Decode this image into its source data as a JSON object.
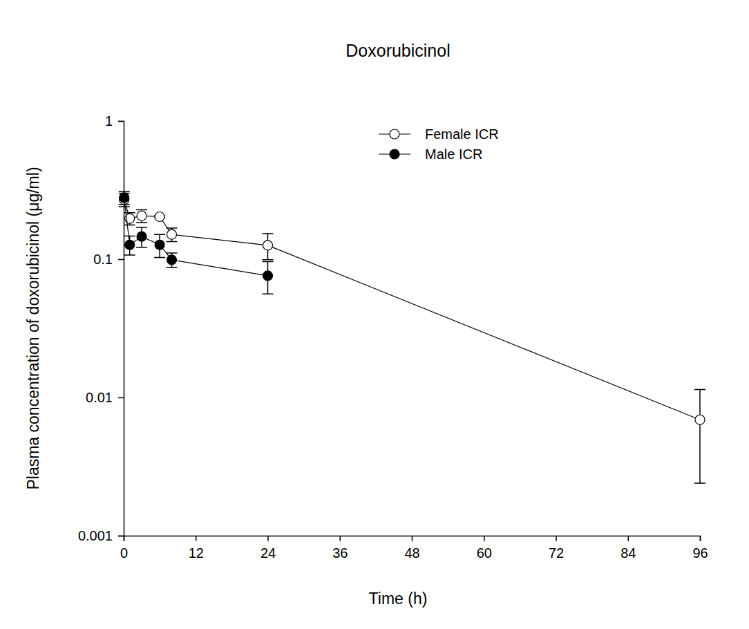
{
  "chart_data": {
    "type": "line",
    "title": "Doxorubicinol",
    "x_label": "Time (h)",
    "y_label": "Plasma concentration of doxorubicinol (μg/ml)",
    "log": "y",
    "legend": "top",
    "grid": false,
    "xlim": [
      0,
      96
    ],
    "xticks": [
      0,
      12,
      24,
      36,
      48,
      60,
      72,
      84,
      96
    ],
    "ylim": [
      0.001,
      1
    ],
    "yticks": [
      0.001,
      0.01,
      0.1,
      1
    ],
    "series": [
      {
        "name": "Female ICR",
        "color": "#000000",
        "marker": "open-circle",
        "line_style": "solid",
        "x": [
          0.083,
          1,
          3,
          6,
          8,
          24,
          96
        ],
        "values": [
          0.27,
          0.197,
          0.206,
          0.203,
          0.151,
          0.126,
          0.0069
        ],
        "errors": [
          0.03,
          0.02,
          0.022,
          0.004,
          0.017,
          0.027,
          0.0045
        ]
      },
      {
        "name": "Male ICR",
        "color": "#000000",
        "marker": "circle",
        "line_style": "solid",
        "x": [
          0.083,
          1,
          3,
          6,
          8,
          24
        ],
        "values": [
          0.279,
          0.127,
          0.146,
          0.127,
          0.099,
          0.076
        ],
        "errors": [
          0.03,
          0.02,
          0.024,
          0.024,
          0.012,
          0.02
        ]
      }
    ]
  }
}
